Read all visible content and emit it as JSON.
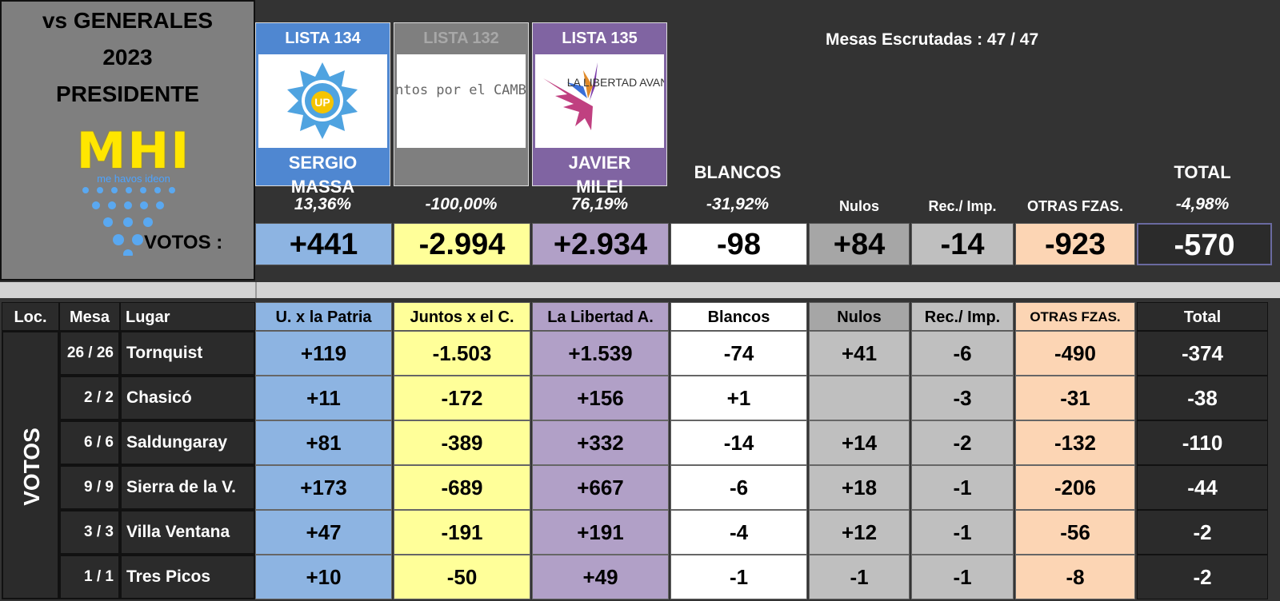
{
  "header": {
    "title_lines": [
      "vs GENERALES",
      "2023",
      "PRESIDENTE"
    ],
    "logo_text": "MHI",
    "logo_tagline": "me havos ideon",
    "votos_label": "VOTOS :",
    "mesas_escrutadas": "Mesas Escrutadas :  47 / 47"
  },
  "cards": [
    {
      "lista": "LISTA 134",
      "logo": "UP",
      "candidate_line1": "SERGIO",
      "candidate_line2": "MASSA",
      "color": "#4f87d1"
    },
    {
      "lista": "LISTA 132",
      "logo": "Juntos por el CAMBIO",
      "candidate_line1": "",
      "candidate_line2": "",
      "color": "#7f7f7f"
    },
    {
      "lista": "LISTA 135",
      "logo": "LA LIBERTAD AVANZA",
      "candidate_line1": "JAVIER",
      "candidate_line2": "MILEI",
      "color": "#8064a2"
    }
  ],
  "summary": {
    "labels": {
      "blancos": "BLANCOS",
      "total": "TOTAL",
      "nulos": "Nulos",
      "rec_imp": "Rec./ Imp.",
      "otras": "OTRAS FZAS."
    },
    "percentages": {
      "massa": "13,36%",
      "juntos": "-100,00%",
      "milei": "76,19%",
      "blancos": "-31,92%",
      "total": "-4,98%"
    },
    "votes": {
      "massa": "+441",
      "juntos": "-2.994",
      "milei": "+2.934",
      "blancos": "-98",
      "nulos": "+84",
      "rec_imp": "-14",
      "otras": "-923",
      "total": "-570"
    }
  },
  "table": {
    "headers": {
      "loc": "Loc.",
      "mesa": "Mesa",
      "lugar": "Lugar",
      "up": "U. x la Patria",
      "juntos": "Juntos x el C.",
      "libertad": "La Libertad A.",
      "blancos": "Blancos",
      "nulos": "Nulos",
      "rec_imp": "Rec./ Imp.",
      "otras": "OTRAS FZAS.",
      "total": "Total"
    },
    "side_label": "VOTOS",
    "rows": [
      {
        "mesa": "26 / 26",
        "lugar": "Tornquist",
        "up": "+119",
        "juntos": "-1.503",
        "libertad": "+1.539",
        "blancos": "-74",
        "nulos": "+41",
        "rec_imp": "-6",
        "otras": "-490",
        "total": "-374"
      },
      {
        "mesa": "2 / 2",
        "lugar": "Chasicó",
        "up": "+11",
        "juntos": "-172",
        "libertad": "+156",
        "blancos": "+1",
        "nulos": "",
        "rec_imp": "-3",
        "otras": "-31",
        "total": "-38"
      },
      {
        "mesa": "6 / 6",
        "lugar": "Saldungaray",
        "up": "+81",
        "juntos": "-389",
        "libertad": "+332",
        "blancos": "-14",
        "nulos": "+14",
        "rec_imp": "-2",
        "otras": "-132",
        "total": "-110"
      },
      {
        "mesa": "9 / 9",
        "lugar": "Sierra de la V.",
        "up": "+173",
        "juntos": "-689",
        "libertad": "+667",
        "blancos": "-6",
        "nulos": "+18",
        "rec_imp": "-1",
        "otras": "-206",
        "total": "-44"
      },
      {
        "mesa": "3 / 3",
        "lugar": "Villa Ventana",
        "up": "+47",
        "juntos": "-191",
        "libertad": "+191",
        "blancos": "-4",
        "nulos": "+12",
        "rec_imp": "-1",
        "otras": "-56",
        "total": "-2"
      },
      {
        "mesa": "1 / 1",
        "lugar": "Tres Picos",
        "up": "+10",
        "juntos": "-50",
        "libertad": "+49",
        "blancos": "-1",
        "nulos": "-1",
        "rec_imp": "-1",
        "otras": "-8",
        "total": "-2"
      }
    ]
  }
}
